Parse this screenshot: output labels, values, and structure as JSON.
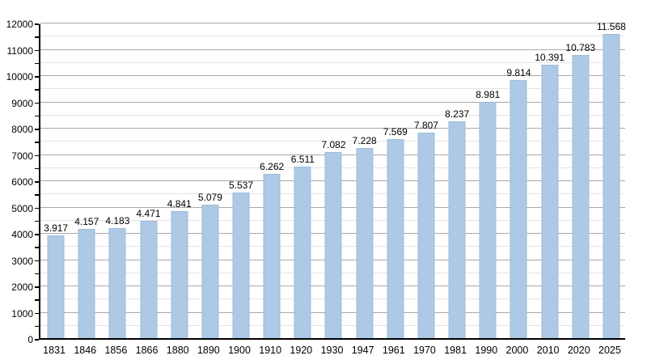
{
  "chart_data": {
    "type": "bar",
    "title": "",
    "xlabel": "",
    "ylabel": "",
    "categories": [
      "1831",
      "1846",
      "1856",
      "1866",
      "1880",
      "1890",
      "1900",
      "1910",
      "1920",
      "1930",
      "1947",
      "1961",
      "1970",
      "1981",
      "1990",
      "2000",
      "2010",
      "2020",
      "2025"
    ],
    "values": [
      3917,
      4157,
      4183,
      4471,
      4841,
      5079,
      5537,
      6262,
      6511,
      7082,
      7228,
      7569,
      7807,
      8237,
      8981,
      9814,
      10391,
      10783,
      11568
    ],
    "value_labels": [
      "3.917",
      "4.157",
      "4.183",
      "4.471",
      "4.841",
      "5.079",
      "5.537",
      "6.262",
      "6.511",
      "7.082",
      "7.228",
      "7.569",
      "7.807",
      "8.237",
      "8.981",
      "9.814",
      "10.391",
      "10.783",
      "11.568"
    ],
    "ylim": [
      0,
      12000
    ],
    "y_major_step": 1000,
    "y_minor_step": 500,
    "y_tick_labels": [
      "0",
      "1000",
      "2000",
      "3000",
      "4000",
      "5000",
      "6000",
      "7000",
      "8000",
      "9000",
      "10000",
      "11000",
      "12000"
    ],
    "grid": true,
    "legend": "none",
    "colors": {
      "bar_fill": "#adc9e6",
      "bar_border": "#9fbbd8",
      "major_grid": "#a9a9a9",
      "minor_grid": "#e4e4e4",
      "axis": "#000000",
      "text": "#000000",
      "background": "#ffffff"
    }
  }
}
